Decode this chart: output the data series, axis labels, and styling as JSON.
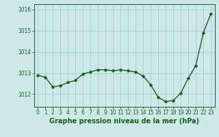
{
  "x": [
    0,
    1,
    2,
    3,
    4,
    5,
    6,
    7,
    8,
    9,
    10,
    11,
    12,
    13,
    14,
    15,
    16,
    17,
    18,
    19,
    20,
    21,
    22,
    23
  ],
  "y": [
    1012.9,
    1012.8,
    1012.35,
    1012.4,
    1012.55,
    1012.65,
    1012.95,
    1013.05,
    1013.15,
    1013.15,
    1013.1,
    1013.15,
    1013.1,
    1013.05,
    1012.85,
    1012.45,
    1011.85,
    1011.65,
    1011.7,
    1012.05,
    1012.75,
    1013.35,
    1014.9,
    1015.8
  ],
  "line_color": "#1a5c1a",
  "marker": "D",
  "marker_size": 2.5,
  "marker_color": "#1a5c1a",
  "bg_color": "#cce8e8",
  "grid_color": "#aad0d0",
  "title": "Graphe pression niveau de la mer (hPa)",
  "title_color": "#1a5c1a",
  "title_fontsize": 7.0,
  "ylim": [
    1011.4,
    1016.25
  ],
  "yticks": [
    1012,
    1013,
    1014,
    1015,
    1016
  ],
  "xticks": [
    0,
    1,
    2,
    3,
    4,
    5,
    6,
    7,
    8,
    9,
    10,
    11,
    12,
    13,
    14,
    15,
    16,
    17,
    18,
    19,
    20,
    21,
    22,
    23
  ],
  "tick_fontsize": 5.5,
  "tick_color": "#1a5c1a",
  "spine_color": "#1a5c1a",
  "line_width": 1.0
}
